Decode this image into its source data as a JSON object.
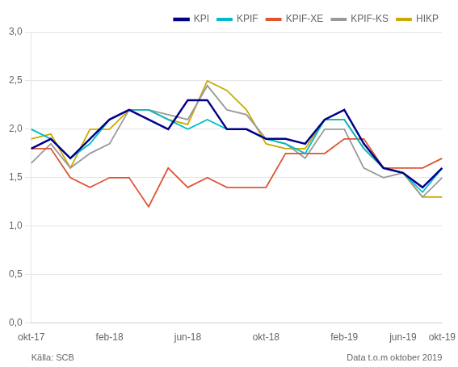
{
  "chart_data": {
    "type": "line",
    "categories": [
      "okt-17",
      null,
      null,
      null,
      "feb-18",
      null,
      null,
      null,
      "jun-18",
      null,
      null,
      null,
      "okt-18",
      null,
      null,
      null,
      "feb-19",
      null,
      null,
      "jun-19",
      null,
      "okt-19"
    ],
    "series": [
      {
        "name": "KPI",
        "color": "#00008B",
        "values": [
          1.8,
          1.9,
          1.7,
          1.9,
          2.1,
          2.2,
          2.1,
          2.0,
          2.3,
          2.3,
          2.0,
          2.0,
          1.9,
          1.9,
          1.85,
          2.1,
          2.2,
          1.85,
          1.6,
          1.55,
          1.4,
          1.6
        ]
      },
      {
        "name": "KPIF",
        "color": "#00bbcc",
        "values": [
          2.0,
          1.9,
          1.7,
          1.85,
          2.1,
          2.2,
          2.2,
          2.1,
          2.0,
          2.1,
          2.0,
          2.0,
          1.9,
          1.85,
          1.75,
          2.1,
          2.1,
          1.8,
          1.6,
          1.55,
          1.35,
          1.6
        ]
      },
      {
        "name": "KPIF-XE",
        "color": "#dd5533",
        "values": [
          1.8,
          1.8,
          1.5,
          1.4,
          1.5,
          1.5,
          1.2,
          1.6,
          1.4,
          1.5,
          1.4,
          1.4,
          1.4,
          1.75,
          1.75,
          1.75,
          1.9,
          1.9,
          1.6,
          1.6,
          1.6,
          1.7
        ]
      },
      {
        "name": "KPIF-KS",
        "color": "#999999",
        "values": [
          1.65,
          1.85,
          1.6,
          1.75,
          1.85,
          2.2,
          2.2,
          2.15,
          2.1,
          2.45,
          2.2,
          2.15,
          1.9,
          1.85,
          1.7,
          2.0,
          2.0,
          1.6,
          1.5,
          1.55,
          1.3,
          1.5
        ]
      },
      {
        "name": "HIKP",
        "color": "#ccaa00",
        "values": [
          1.9,
          1.95,
          1.6,
          2.0,
          2.0,
          2.2,
          2.2,
          2.1,
          2.05,
          2.5,
          2.4,
          2.2,
          1.85,
          1.8,
          1.8,
          2.1,
          2.1,
          1.8,
          1.6,
          1.55,
          1.3,
          1.3
        ]
      }
    ],
    "ylim": [
      0,
      3
    ],
    "yticks": [
      {
        "value": 0,
        "label": "0,0"
      },
      {
        "value": 0.5,
        "label": "0,5"
      },
      {
        "value": 1,
        "label": "1,0"
      },
      {
        "value": 1.5,
        "label": "1,5"
      },
      {
        "value": 2,
        "label": "2,0"
      },
      {
        "value": 2.5,
        "label": "2,5"
      },
      {
        "value": 3,
        "label": "3,0"
      }
    ],
    "grid": "y",
    "legend": "upper right",
    "annotations": [
      "Källa: SCB",
      "Data t.o.m oktober 2019"
    ]
  }
}
